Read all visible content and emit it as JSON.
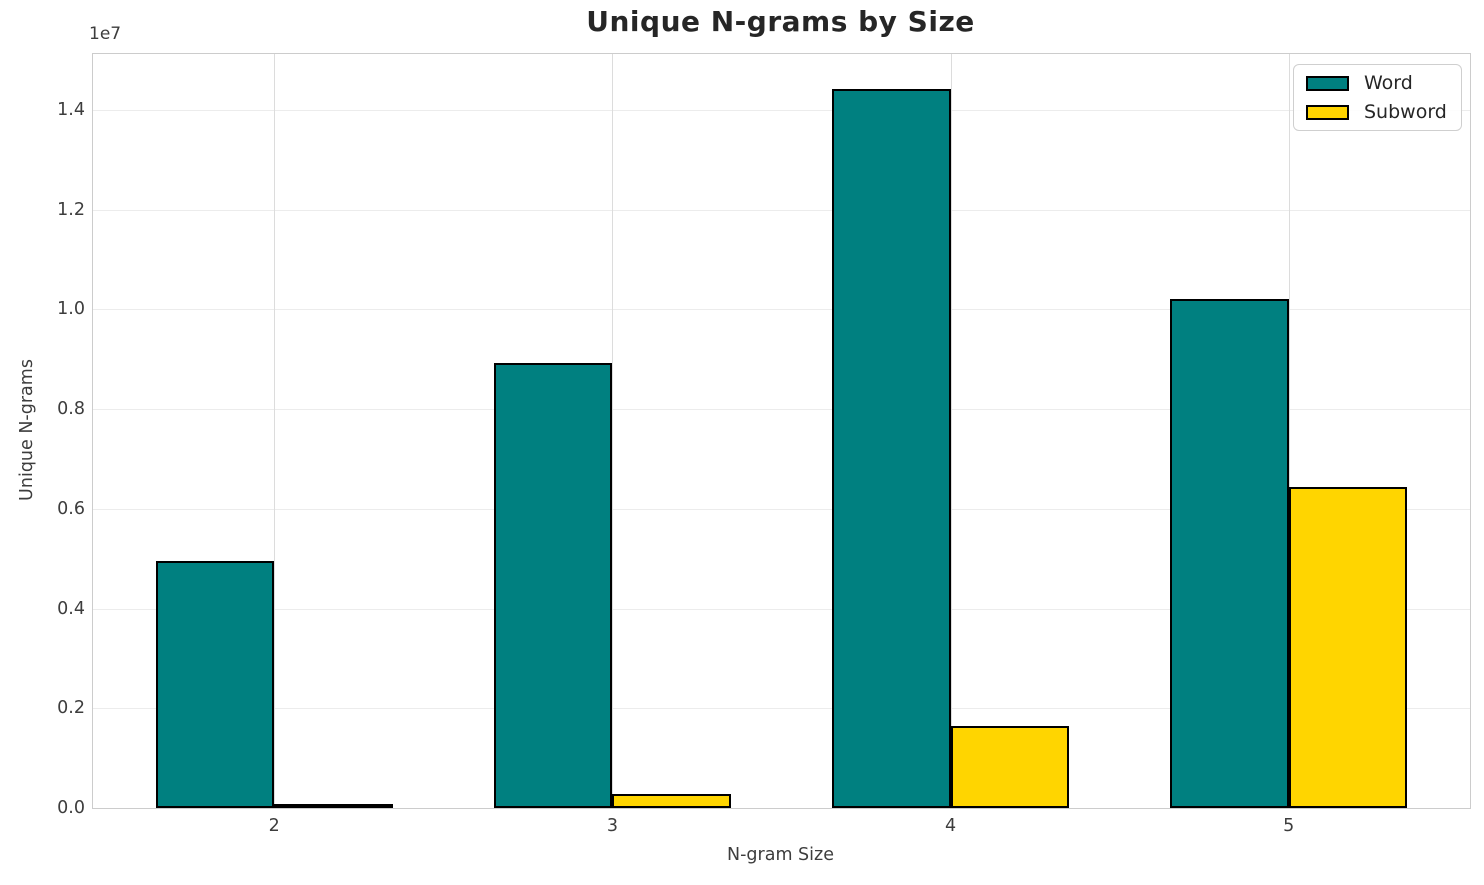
{
  "figure": {
    "background": "#ffffff",
    "spine_color": "#cccccc",
    "grid_color_horizontal": "#ececec",
    "grid_color_vertical": "#dcdcdc",
    "text_color": "#3d3d3d",
    "title_color": "#262626",
    "bar_edge_color": "#000000"
  },
  "chart_data": {
    "type": "bar",
    "title": "Unique N-grams by Size",
    "xlabel": "N-gram Size",
    "ylabel": "Unique N-grams",
    "y_offset_text": "1e7",
    "categories": [
      "2",
      "3",
      "4",
      "5"
    ],
    "series": [
      {
        "name": "Word",
        "color": "#008080",
        "values": [
          4950000,
          8930000,
          14420000,
          10210000
        ]
      },
      {
        "name": "Subword",
        "color": "#FFD500",
        "values": [
          30000,
          290000,
          1640000,
          6440000
        ]
      }
    ],
    "ylim": [
      0,
      15120000
    ],
    "yticks": [
      0,
      2000000,
      4000000,
      6000000,
      8000000,
      10000000,
      12000000,
      14000000
    ],
    "ytick_labels": [
      "0.0",
      "0.2",
      "0.4",
      "0.6",
      "0.8",
      "1.0",
      "1.2",
      "1.4"
    ],
    "xlim": [
      -0.536,
      3.536
    ],
    "bar_width_data_units": 0.351,
    "grid": true,
    "legend_position": "upper right"
  }
}
